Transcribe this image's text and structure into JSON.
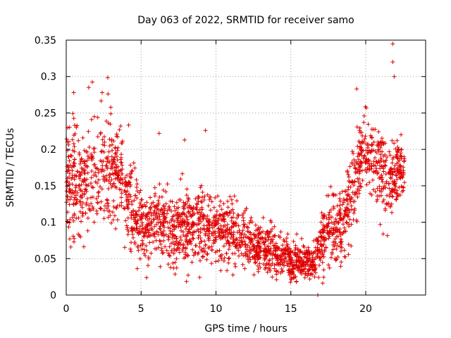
{
  "chart_data": {
    "type": "scatter",
    "title": "Day 063 of 2022, SRMTID for receiver samo",
    "xlabel": "GPS time / hours",
    "ylabel": "SRMTID / TECUs",
    "xlim": [
      0,
      24
    ],
    "ylim": [
      0,
      0.35
    ],
    "xticks": [
      0,
      5,
      10,
      15,
      20
    ],
    "xtick_labels": [
      "0",
      "5",
      "10",
      "15",
      "20"
    ],
    "yticks": [
      0,
      0.05,
      0.1,
      0.15,
      0.2,
      0.25,
      0.3,
      0.35
    ],
    "ytick_labels": [
      "0",
      "0.05",
      "0.1",
      "0.15",
      "0.2",
      "0.25",
      "0.3",
      "0.35"
    ],
    "grid": true,
    "marker": "plus",
    "marker_color": "#e00000",
    "series": [
      {
        "name": "SRMTID",
        "profile": [
          [
            0.0,
            0.15,
            0.05
          ],
          [
            0.5,
            0.16,
            0.06
          ],
          [
            1.0,
            0.15,
            0.05
          ],
          [
            1.5,
            0.16,
            0.05
          ],
          [
            2.0,
            0.17,
            0.05
          ],
          [
            2.5,
            0.18,
            0.05
          ],
          [
            3.0,
            0.17,
            0.05
          ],
          [
            3.5,
            0.16,
            0.04
          ],
          [
            4.0,
            0.14,
            0.04
          ],
          [
            4.5,
            0.11,
            0.035
          ],
          [
            5.0,
            0.1,
            0.03
          ],
          [
            6.0,
            0.1,
            0.03
          ],
          [
            7.0,
            0.095,
            0.03
          ],
          [
            8.0,
            0.095,
            0.03
          ],
          [
            9.0,
            0.095,
            0.03
          ],
          [
            10.0,
            0.09,
            0.03
          ],
          [
            11.0,
            0.085,
            0.03
          ],
          [
            12.0,
            0.075,
            0.025
          ],
          [
            13.0,
            0.065,
            0.022
          ],
          [
            14.0,
            0.055,
            0.02
          ],
          [
            15.0,
            0.05,
            0.018
          ],
          [
            16.0,
            0.045,
            0.015
          ],
          [
            16.6,
            0.045,
            0.015
          ],
          [
            17.0,
            0.07,
            0.03
          ],
          [
            17.5,
            0.1,
            0.03
          ],
          [
            18.0,
            0.09,
            0.03
          ],
          [
            18.5,
            0.1,
            0.04
          ],
          [
            19.0,
            0.14,
            0.04
          ],
          [
            19.5,
            0.18,
            0.04
          ],
          [
            20.0,
            0.2,
            0.035
          ],
          [
            20.5,
            0.19,
            0.035
          ],
          [
            21.0,
            0.17,
            0.04
          ],
          [
            21.5,
            0.15,
            0.04
          ],
          [
            22.0,
            0.17,
            0.03
          ],
          [
            22.6,
            0.18,
            0.03
          ]
        ],
        "x_range": [
          0.0,
          22.6
        ],
        "count": 2400,
        "outliers": [
          [
            21.8,
            0.345
          ],
          [
            21.8,
            0.32
          ],
          [
            21.9,
            0.3
          ],
          [
            1.5,
            0.285
          ],
          [
            2.4,
            0.278
          ],
          [
            0.5,
            0.278
          ],
          [
            19.4,
            0.283
          ],
          [
            9.3,
            0.226
          ],
          [
            6.2,
            0.222
          ],
          [
            7.9,
            0.213
          ],
          [
            16.8,
            0.0
          ]
        ]
      }
    ]
  }
}
